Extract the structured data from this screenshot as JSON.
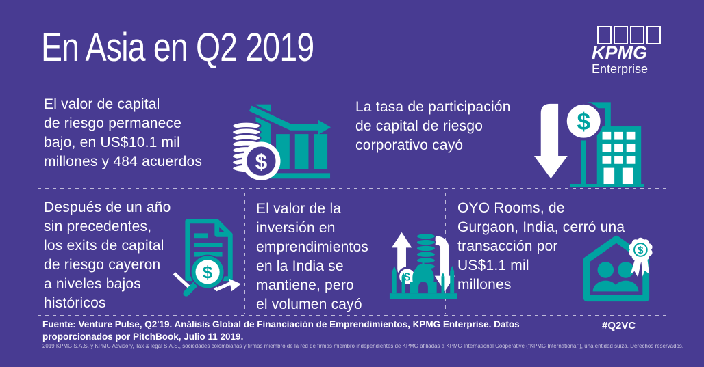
{
  "title": "En Asia en Q2 2019",
  "logo": {
    "brand": "KPMG",
    "subtitle": "Enterprise"
  },
  "colors": {
    "background": "#483b92",
    "teal": "#00a3a1",
    "text": "#ffffff"
  },
  "currency_symbol": "$",
  "facts": [
    {
      "icon": "coins-declining-bar-chart-icon",
      "lines": [
        "El valor de capital",
        "de riesgo permanece",
        "bajo, en US$10.1 mil",
        "millones y 484 acuerdos"
      ]
    },
    {
      "icon": "down-arrow-dollar-building-icon",
      "lines": [
        "La tasa de participación",
        "de capital de riesgo",
        "corporativo cayó"
      ]
    },
    {
      "icon": "document-magnifier-declining-trend-icon",
      "lines": [
        "Después de un año",
        "sin precedentes,",
        "los exits de capital",
        "de riesgo cayeron",
        "a niveles bajos",
        "históricos"
      ]
    },
    {
      "icon": "exchange-arrows-coins-taj-mahal-icon",
      "lines": [
        "El valor de la",
        "inversión en",
        "emprendimientos",
        "en la India se",
        "mantiene, pero",
        "el volumen cayó"
      ]
    },
    {
      "icon": "house-people-award-ribbon-icon",
      "lines": [
        "OYO Rooms, de",
        "Gurgaon, India, cerró una",
        "transacción por",
        "US$1.1 mil",
        "millones"
      ]
    }
  ],
  "footer": {
    "source_lines": [
      "Fuente: Venture Pulse, Q2'19. Análisis Global de Financiación de Emprendimientos, KPMG Enterprise. Datos",
      "proporcionados por PitchBook, Julio 11 2019."
    ],
    "hashtag": "#Q2VC",
    "legal": "2019 KPMG S.A.S. y KPMG Advisory, Tax & legal S.A.S., sociedades colombianas y firmas miembro de la red de firmas miembro independientes de KPMG afiliadas a KPMG International Cooperative (\"KPMG International\"), una entidad suiza. Derechos reservados."
  }
}
